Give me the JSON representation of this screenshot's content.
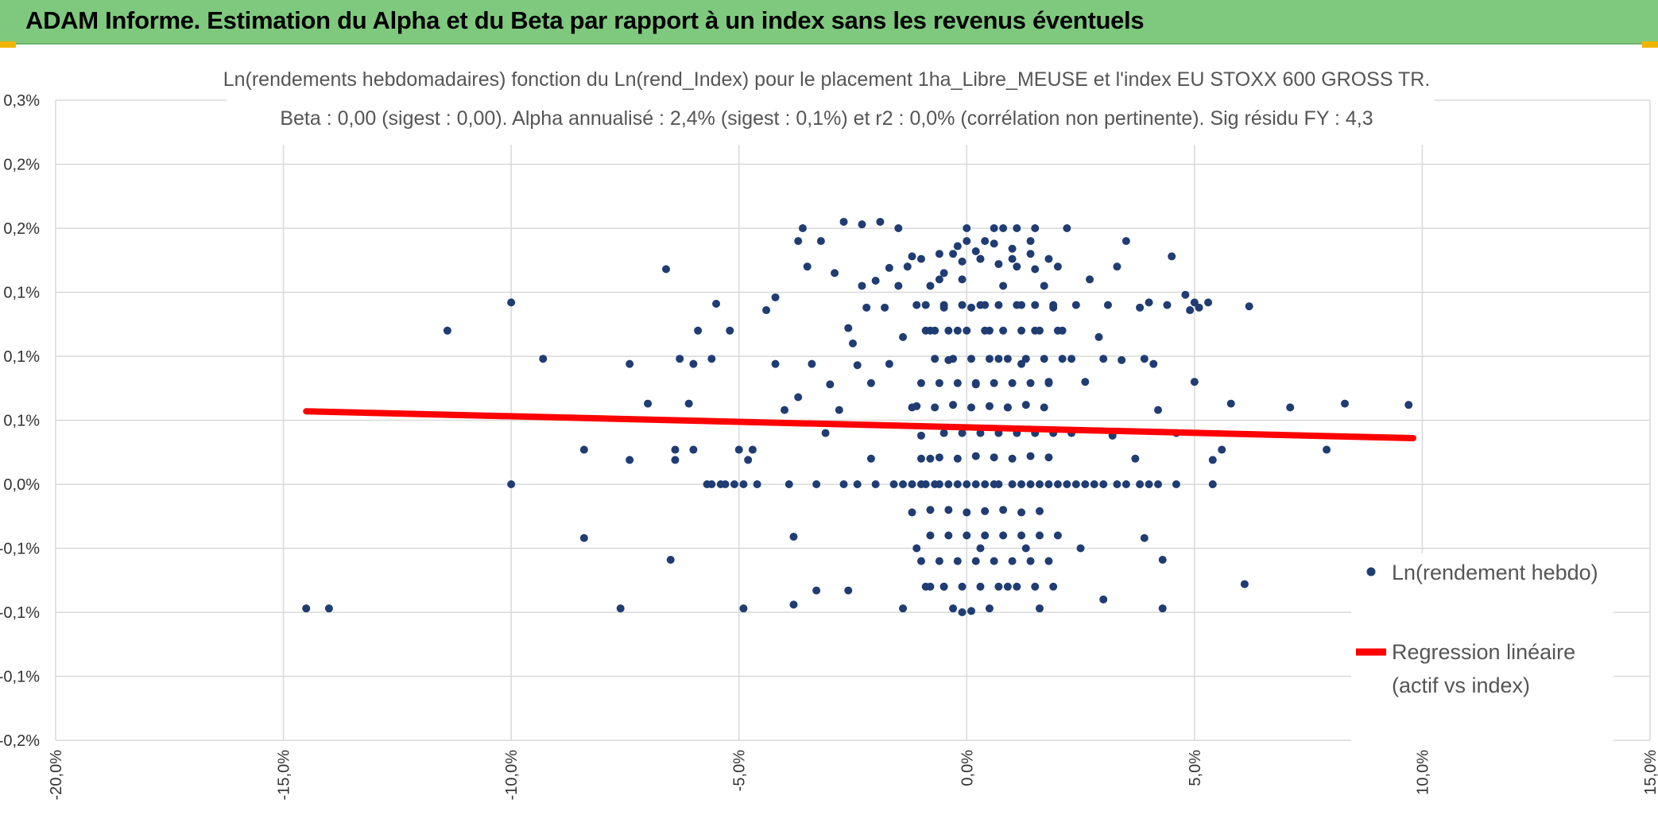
{
  "banner": {
    "title": "ADAM Informe. Estimation du Alpha et du Beta par rapport à un index sans les revenus éventuels",
    "color": "#7fc97f"
  },
  "chart_data": {
    "type": "scatter",
    "title_line1": "Ln(rendements hebdomadaires) fonction du Ln(rend_Index) pour le placement 1ha_Libre_MEUSE et l'index EU STOXX 600 GROSS TR.",
    "title_line2": "Beta : 0,00 (sigest : 0,00). Alpha annualisé : 2,4% (sigest : 0,1%) et r2 : 0,0% (corrélation non pertinente). Sig résidu FY : 4,3",
    "xlim": [
      -20,
      15
    ],
    "ylim": [
      -0.2,
      0.3
    ],
    "x_ticks": [
      -20,
      -15,
      -10,
      -5,
      0,
      5,
      10,
      15
    ],
    "x_tick_labels": [
      "-20,0%",
      "-15,0%",
      "-10,0%",
      "-5,0%",
      "0,0%",
      "5,0%",
      "10,0%",
      "15,0%"
    ],
    "y_ticks": [
      0.3,
      0.25,
      0.2,
      0.15,
      0.1,
      0.05,
      0.0,
      -0.05,
      -0.1,
      -0.15,
      -0.2
    ],
    "y_tick_labels": [
      "0,3%",
      "0,2%",
      "0,2%",
      "0,1%",
      "0,1%",
      "0,1%",
      "0,0%",
      "-0,1%",
      "-0,1%",
      "-0,1%",
      "-0,2%"
    ],
    "grid": true,
    "legend_position": "right",
    "series": [
      {
        "name": "Ln(rendement hebdo)",
        "color": "#1f3d73",
        "points": [
          [
            -14.5,
            -0.097
          ],
          [
            -14.0,
            -0.097
          ],
          [
            -11.4,
            0.12
          ],
          [
            -10.0,
            0.142
          ],
          [
            -10.0,
            0.0
          ],
          [
            -9.3,
            0.098
          ],
          [
            -8.4,
            0.027
          ],
          [
            -8.4,
            -0.042
          ],
          [
            -7.6,
            -0.097
          ],
          [
            -7.4,
            0.094
          ],
          [
            -7.4,
            0.019
          ],
          [
            -7.0,
            0.063
          ],
          [
            -6.6,
            0.168
          ],
          [
            -6.5,
            -0.059
          ],
          [
            -6.4,
            0.027
          ],
          [
            -6.4,
            0.019
          ],
          [
            -6.3,
            0.098
          ],
          [
            -6.1,
            0.063
          ],
          [
            -6.0,
            0.094
          ],
          [
            -6.0,
            0.027
          ],
          [
            -5.9,
            0.12
          ],
          [
            -5.7,
            0.0
          ],
          [
            -5.6,
            0.0
          ],
          [
            -5.6,
            0.098
          ],
          [
            -5.5,
            0.141
          ],
          [
            -5.4,
            0.0
          ],
          [
            -5.3,
            0.0
          ],
          [
            -5.2,
            0.12
          ],
          [
            -5.1,
            0.0
          ],
          [
            -5.0,
            0.027
          ],
          [
            -4.9,
            0.0
          ],
          [
            -4.9,
            -0.097
          ],
          [
            -4.8,
            0.019
          ],
          [
            -4.7,
            0.027
          ],
          [
            -4.6,
            0.0
          ],
          [
            -4.4,
            0.136
          ],
          [
            -4.2,
            0.094
          ],
          [
            -4.2,
            0.146
          ],
          [
            -4.0,
            0.058
          ],
          [
            -3.9,
            0.0
          ],
          [
            -3.8,
            -0.041
          ],
          [
            -3.8,
            -0.094
          ],
          [
            -3.7,
            0.068
          ],
          [
            -3.7,
            0.19
          ],
          [
            -3.6,
            0.2
          ],
          [
            -3.5,
            0.17
          ],
          [
            -3.4,
            0.094
          ],
          [
            -3.3,
            0.0
          ],
          [
            -3.3,
            -0.083
          ],
          [
            -3.2,
            0.19
          ],
          [
            -3.1,
            0.04
          ],
          [
            -3.0,
            0.078
          ],
          [
            -2.9,
            0.165
          ],
          [
            -2.8,
            0.058
          ],
          [
            -2.7,
            0.205
          ],
          [
            -2.7,
            0.0
          ],
          [
            -2.6,
            0.122
          ],
          [
            -2.6,
            -0.083
          ],
          [
            -2.5,
            0.11
          ],
          [
            -2.4,
            0.0
          ],
          [
            -2.4,
            0.093
          ],
          [
            -2.3,
            0.203
          ],
          [
            -2.3,
            0.155
          ],
          [
            -2.2,
            0.138
          ],
          [
            -2.1,
            0.079
          ],
          [
            -2.1,
            0.02
          ],
          [
            -2.0,
            0.0
          ],
          [
            -2.0,
            0.159
          ],
          [
            -1.9,
            0.205
          ],
          [
            -1.8,
            0.138
          ],
          [
            -1.7,
            0.169
          ],
          [
            -1.7,
            0.094
          ],
          [
            -1.6,
            0.0
          ],
          [
            -1.5,
            0.2
          ],
          [
            -1.5,
            0.155
          ],
          [
            -1.4,
            0.115
          ],
          [
            -1.4,
            0.0
          ],
          [
            -1.4,
            -0.097
          ],
          [
            -1.3,
            0.17
          ],
          [
            -1.2,
            0.0
          ],
          [
            -1.2,
            0.06
          ],
          [
            -1.1,
            0.14
          ],
          [
            -1.1,
            -0.05
          ],
          [
            -1.0,
            0.176
          ],
          [
            -1.0,
            0.0
          ],
          [
            -1.0,
            0.038
          ],
          [
            -0.9,
            0.0
          ],
          [
            -0.9,
            0.12
          ],
          [
            -0.8,
            0.155
          ],
          [
            -0.8,
            0.02
          ],
          [
            -0.8,
            -0.08
          ],
          [
            -0.7,
            0.0
          ],
          [
            -0.7,
            0.12
          ],
          [
            -0.6,
            0.0
          ],
          [
            -0.6,
            0.16
          ],
          [
            -0.5,
            0.138
          ],
          [
            -0.5,
            -0.08
          ],
          [
            -0.4,
            0.0
          ],
          [
            -0.4,
            0.097
          ],
          [
            -0.3,
            0.18
          ],
          [
            -0.3,
            -0.097
          ],
          [
            -0.2,
            0.0
          ],
          [
            -0.2,
            0.12
          ],
          [
            -0.1,
            0.16
          ],
          [
            -0.1,
            -0.1
          ],
          [
            0.0,
            0.0
          ],
          [
            0.0,
            0.19
          ],
          [
            0.1,
            0.138
          ],
          [
            0.1,
            -0.099
          ],
          [
            0.2,
            0.0
          ],
          [
            0.2,
            0.078
          ],
          [
            0.3,
            0.176
          ],
          [
            0.3,
            -0.05
          ],
          [
            0.4,
            0.0
          ],
          [
            0.4,
            0.14
          ],
          [
            0.4,
            0.19
          ],
          [
            0.5,
            0.12
          ],
          [
            0.5,
            -0.097
          ],
          [
            0.6,
            0.0
          ],
          [
            0.6,
            0.2
          ],
          [
            0.7,
            0.098
          ],
          [
            0.7,
            0.0
          ],
          [
            0.8,
            0.155
          ],
          [
            0.9,
            0.06
          ],
          [
            0.9,
            -0.08
          ],
          [
            1.0,
            0.0
          ],
          [
            1.0,
            0.176
          ],
          [
            1.1,
            0.2
          ],
          [
            1.2,
            0.14
          ],
          [
            1.2,
            0.0
          ],
          [
            1.2,
            0.094
          ],
          [
            1.3,
            -0.05
          ],
          [
            1.4,
            0.0
          ],
          [
            1.4,
            0.19
          ],
          [
            1.5,
            0.2
          ],
          [
            1.5,
            0.12
          ],
          [
            1.6,
            0.0
          ],
          [
            1.6,
            -0.097
          ],
          [
            1.7,
            0.155
          ],
          [
            1.8,
            0.0
          ],
          [
            1.8,
            0.08
          ],
          [
            1.9,
            0.138
          ],
          [
            2.0,
            0.0
          ],
          [
            2.0,
            0.17
          ],
          [
            2.1,
            0.12
          ],
          [
            2.2,
            0.0
          ],
          [
            2.2,
            0.2
          ],
          [
            2.3,
            0.098
          ],
          [
            2.4,
            0.0
          ],
          [
            2.4,
            0.14
          ],
          [
            2.5,
            -0.05
          ],
          [
            2.6,
            0.0
          ],
          [
            2.6,
            0.08
          ],
          [
            2.7,
            0.16
          ],
          [
            2.8,
            0.0
          ],
          [
            2.9,
            0.115
          ],
          [
            3.0,
            0.0
          ],
          [
            3.0,
            -0.09
          ],
          [
            3.0,
            0.098
          ],
          [
            3.1,
            0.14
          ],
          [
            3.2,
            0.038
          ],
          [
            3.3,
            0.0
          ],
          [
            3.3,
            0.17
          ],
          [
            3.4,
            0.097
          ],
          [
            3.5,
            0.0
          ],
          [
            3.5,
            0.19
          ],
          [
            3.7,
            0.02
          ],
          [
            3.8,
            0.0
          ],
          [
            3.8,
            0.138
          ],
          [
            3.9,
            0.098
          ],
          [
            3.9,
            -0.042
          ],
          [
            4.0,
            0.0
          ],
          [
            4.0,
            0.142
          ],
          [
            4.1,
            0.094
          ],
          [
            4.2,
            0.0
          ],
          [
            4.2,
            0.058
          ],
          [
            4.3,
            -0.097
          ],
          [
            4.3,
            -0.059
          ],
          [
            4.4,
            0.14
          ],
          [
            4.5,
            0.178
          ],
          [
            4.6,
            0.0
          ],
          [
            4.6,
            0.04
          ],
          [
            4.8,
            0.148
          ],
          [
            4.9,
            0.136
          ],
          [
            5.0,
            0.08
          ],
          [
            5.0,
            0.142
          ],
          [
            5.1,
            0.138
          ],
          [
            5.3,
            0.142
          ],
          [
            5.4,
            0.0
          ],
          [
            5.4,
            0.019
          ],
          [
            5.6,
            0.027
          ],
          [
            5.8,
            0.063
          ],
          [
            6.1,
            -0.078
          ],
          [
            6.2,
            0.139
          ],
          [
            7.1,
            0.06
          ],
          [
            7.9,
            0.027
          ],
          [
            8.3,
            0.063
          ],
          [
            9.7,
            0.062
          ],
          [
            -0.6,
            0.18
          ],
          [
            -0.2,
            0.186
          ],
          [
            0.2,
            0.182
          ],
          [
            0.6,
            0.188
          ],
          [
            1.0,
            0.184
          ],
          [
            1.4,
            0.18
          ],
          [
            -1.2,
            0.178
          ],
          [
            1.8,
            0.176
          ],
          [
            -0.7,
            0.06
          ],
          [
            -0.3,
            0.062
          ],
          [
            0.1,
            0.06
          ],
          [
            0.5,
            0.061
          ],
          [
            0.9,
            0.06
          ],
          [
            1.3,
            0.062
          ],
          [
            1.7,
            0.06
          ],
          [
            -1.1,
            0.061
          ],
          [
            -0.5,
            0.04
          ],
          [
            -0.1,
            0.04
          ],
          [
            0.3,
            0.04
          ],
          [
            0.7,
            0.04
          ],
          [
            1.1,
            0.04
          ],
          [
            1.5,
            0.04
          ],
          [
            1.9,
            0.04
          ],
          [
            2.3,
            0.04
          ],
          [
            -0.4,
            -0.04
          ],
          [
            0.0,
            -0.04
          ],
          [
            0.4,
            -0.04
          ],
          [
            0.8,
            -0.04
          ],
          [
            1.2,
            -0.04
          ],
          [
            1.6,
            -0.04
          ],
          [
            2.0,
            -0.04
          ],
          [
            -0.8,
            -0.04
          ],
          [
            -0.6,
            -0.06
          ],
          [
            -0.2,
            -0.06
          ],
          [
            0.2,
            -0.06
          ],
          [
            0.6,
            -0.06
          ],
          [
            1.0,
            -0.06
          ],
          [
            1.4,
            -0.06
          ],
          [
            1.8,
            -0.06
          ],
          [
            -1.0,
            -0.06
          ],
          [
            -0.5,
            -0.08
          ],
          [
            -0.1,
            -0.08
          ],
          [
            0.3,
            -0.08
          ],
          [
            0.7,
            -0.08
          ],
          [
            1.1,
            -0.08
          ],
          [
            1.5,
            -0.08
          ],
          [
            1.9,
            -0.08
          ],
          [
            -0.9,
            -0.08
          ],
          [
            -0.4,
            0.12
          ],
          [
            0.0,
            0.12
          ],
          [
            0.4,
            0.12
          ],
          [
            0.8,
            0.12
          ],
          [
            1.2,
            0.12
          ],
          [
            1.6,
            0.12
          ],
          [
            2.0,
            0.12
          ],
          [
            -0.8,
            0.12
          ],
          [
            -0.3,
            0.098
          ],
          [
            0.1,
            0.098
          ],
          [
            0.5,
            0.098
          ],
          [
            0.9,
            0.098
          ],
          [
            1.3,
            0.098
          ],
          [
            1.7,
            0.098
          ],
          [
            2.1,
            0.098
          ],
          [
            -0.7,
            0.098
          ],
          [
            -0.6,
            0.079
          ],
          [
            -0.2,
            0.079
          ],
          [
            0.2,
            0.079
          ],
          [
            0.6,
            0.079
          ],
          [
            1.0,
            0.079
          ],
          [
            1.4,
            0.079
          ],
          [
            -1.0,
            0.079
          ],
          [
            1.8,
            0.079
          ],
          [
            -0.5,
            0.14
          ],
          [
            -0.1,
            0.14
          ],
          [
            0.3,
            0.14
          ],
          [
            0.7,
            0.14
          ],
          [
            1.1,
            0.14
          ],
          [
            1.5,
            0.14
          ],
          [
            -0.9,
            0.14
          ],
          [
            1.9,
            0.14
          ],
          [
            -0.4,
            -0.02
          ],
          [
            0.0,
            -0.022
          ],
          [
            0.4,
            -0.021
          ],
          [
            0.8,
            -0.02
          ],
          [
            1.2,
            -0.022
          ],
          [
            1.6,
            -0.021
          ],
          [
            -0.8,
            -0.02
          ],
          [
            -1.2,
            -0.022
          ],
          [
            -0.6,
            0.021
          ],
          [
            -0.2,
            0.02
          ],
          [
            0.2,
            0.022
          ],
          [
            0.6,
            0.021
          ],
          [
            1.0,
            0.02
          ],
          [
            1.4,
            0.022
          ],
          [
            1.8,
            0.021
          ],
          [
            -1.0,
            0.02
          ],
          [
            0.3,
            0.176
          ],
          [
            0.7,
            0.172
          ],
          [
            -0.1,
            0.174
          ],
          [
            1.1,
            0.17
          ],
          [
            -0.5,
            0.165
          ],
          [
            1.5,
            0.168
          ],
          [
            0.0,
            0.2
          ],
          [
            0.8,
            0.2
          ]
        ]
      },
      {
        "name": "Regression linéaire (actif vs index)",
        "color": "#ff0000",
        "line": [
          [
            -14.5,
            0.057
          ],
          [
            9.8,
            0.036
          ]
        ]
      }
    ],
    "legend": [
      {
        "label": "Ln(rendement hebdo)"
      },
      {
        "label_line1": "Regression linéaire",
        "label_line2": "(actif vs index)"
      }
    ]
  }
}
